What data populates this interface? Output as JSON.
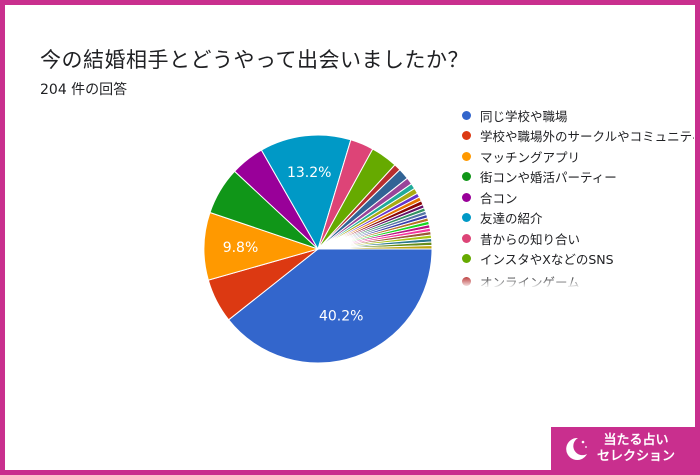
{
  "title": "今の結婚相手とどうやって出会いましたか？",
  "subtitle": "204 件の回答",
  "chart_data": {
    "type": "pie",
    "categories": [
      "同じ学校や職場",
      "学校や職場外のサークルやコミュニティ",
      "マッチングアプリ",
      "街コンや婚活パーティー",
      "合コン",
      "友達の紹介",
      "昔からの知り合い",
      "インスタやXなどのSNS",
      "オンラインゲーム"
    ],
    "values": [
      40.2,
      6.4,
      9.8,
      6.9,
      4.9,
      13.2,
      3.4,
      3.9,
      1.0
    ],
    "colors": [
      "#3366cc",
      "#dc3912",
      "#ff9900",
      "#109618",
      "#990099",
      "#0099c6",
      "#dd4477",
      "#66aa00",
      "#b82e2e"
    ],
    "data_labels": [
      "40.2%",
      "",
      "9.8%",
      "",
      "",
      "13.2%",
      "",
      "",
      ""
    ],
    "other_slices": {
      "values": [
        1.6,
        1.0,
        0.8,
        0.8,
        0.6,
        0.6,
        0.6,
        0.5,
        0.5,
        0.5,
        0.5,
        0.5,
        0.5,
        0.5,
        0.5,
        0.5,
        0.5,
        0.5,
        0.5,
        0.5
      ],
      "colors": [
        "#316395",
        "#994499",
        "#22aa99",
        "#aaaa11",
        "#6633cc",
        "#e67300",
        "#8b0707",
        "#651067",
        "#329262",
        "#5574a6",
        "#3b3eac",
        "#b77322",
        "#16d620",
        "#b91383",
        "#f4359e",
        "#9c5935",
        "#a9c413",
        "#2a778d",
        "#668d1c",
        "#bea413"
      ]
    },
    "legend_position": "right"
  },
  "badge": {
    "line1": "当たる占い",
    "line2": "セレクション",
    "moon_icon": "crescent-moon-icon"
  }
}
